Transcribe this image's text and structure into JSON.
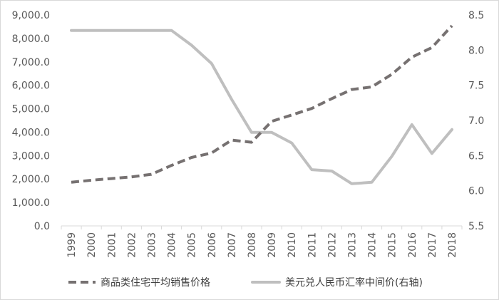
{
  "chart_data": {
    "type": "line",
    "categories": [
      "1999",
      "2000",
      "2001",
      "2002",
      "2003",
      "2004",
      "2005",
      "2006",
      "2007",
      "2008",
      "2009",
      "2010",
      "2011",
      "2012",
      "2013",
      "2014",
      "2015",
      "2016",
      "2017",
      "2018"
    ],
    "series": [
      {
        "name": "商品类住宅平均销售价格",
        "axis": "left",
        "style": "dashed",
        "color": "#767171",
        "values": [
          1860,
          1950,
          2020,
          2090,
          2200,
          2580,
          2920,
          3110,
          3660,
          3570,
          4460,
          4730,
          5010,
          5430,
          5820,
          5930,
          6470,
          7200,
          7610,
          8540
        ]
      },
      {
        "name": "美元兑人民币汇率中间价(右轴)",
        "axis": "right",
        "style": "solid",
        "color": "#bfbfbf",
        "values": [
          8.28,
          8.28,
          8.28,
          8.28,
          8.28,
          8.28,
          8.07,
          7.81,
          7.3,
          6.83,
          6.83,
          6.68,
          6.3,
          6.28,
          6.1,
          6.12,
          6.49,
          6.94,
          6.53,
          6.87
        ]
      }
    ],
    "y_left": {
      "ylim": [
        0,
        9000
      ],
      "ticks": [
        0,
        1000,
        2000,
        3000,
        4000,
        5000,
        6000,
        7000,
        8000,
        9000
      ],
      "tick_labels": [
        "0.0",
        "1,000.0",
        "2,000.0",
        "3,000.0",
        "4,000.0",
        "5,000.0",
        "6,000.0",
        "7,000.0",
        "8,000.0",
        "9,000.0"
      ]
    },
    "y_right": {
      "ylim": [
        5.5,
        8.5
      ],
      "ticks": [
        5.5,
        6.0,
        6.5,
        7.0,
        7.5,
        8.0,
        8.5
      ],
      "tick_labels": [
        "5.5",
        "6.0",
        "6.5",
        "7.0",
        "7.5",
        "8.0",
        "8.5"
      ]
    },
    "title": "",
    "xlabel": "",
    "ylabel": "",
    "grid": false,
    "legend": "bottom"
  }
}
